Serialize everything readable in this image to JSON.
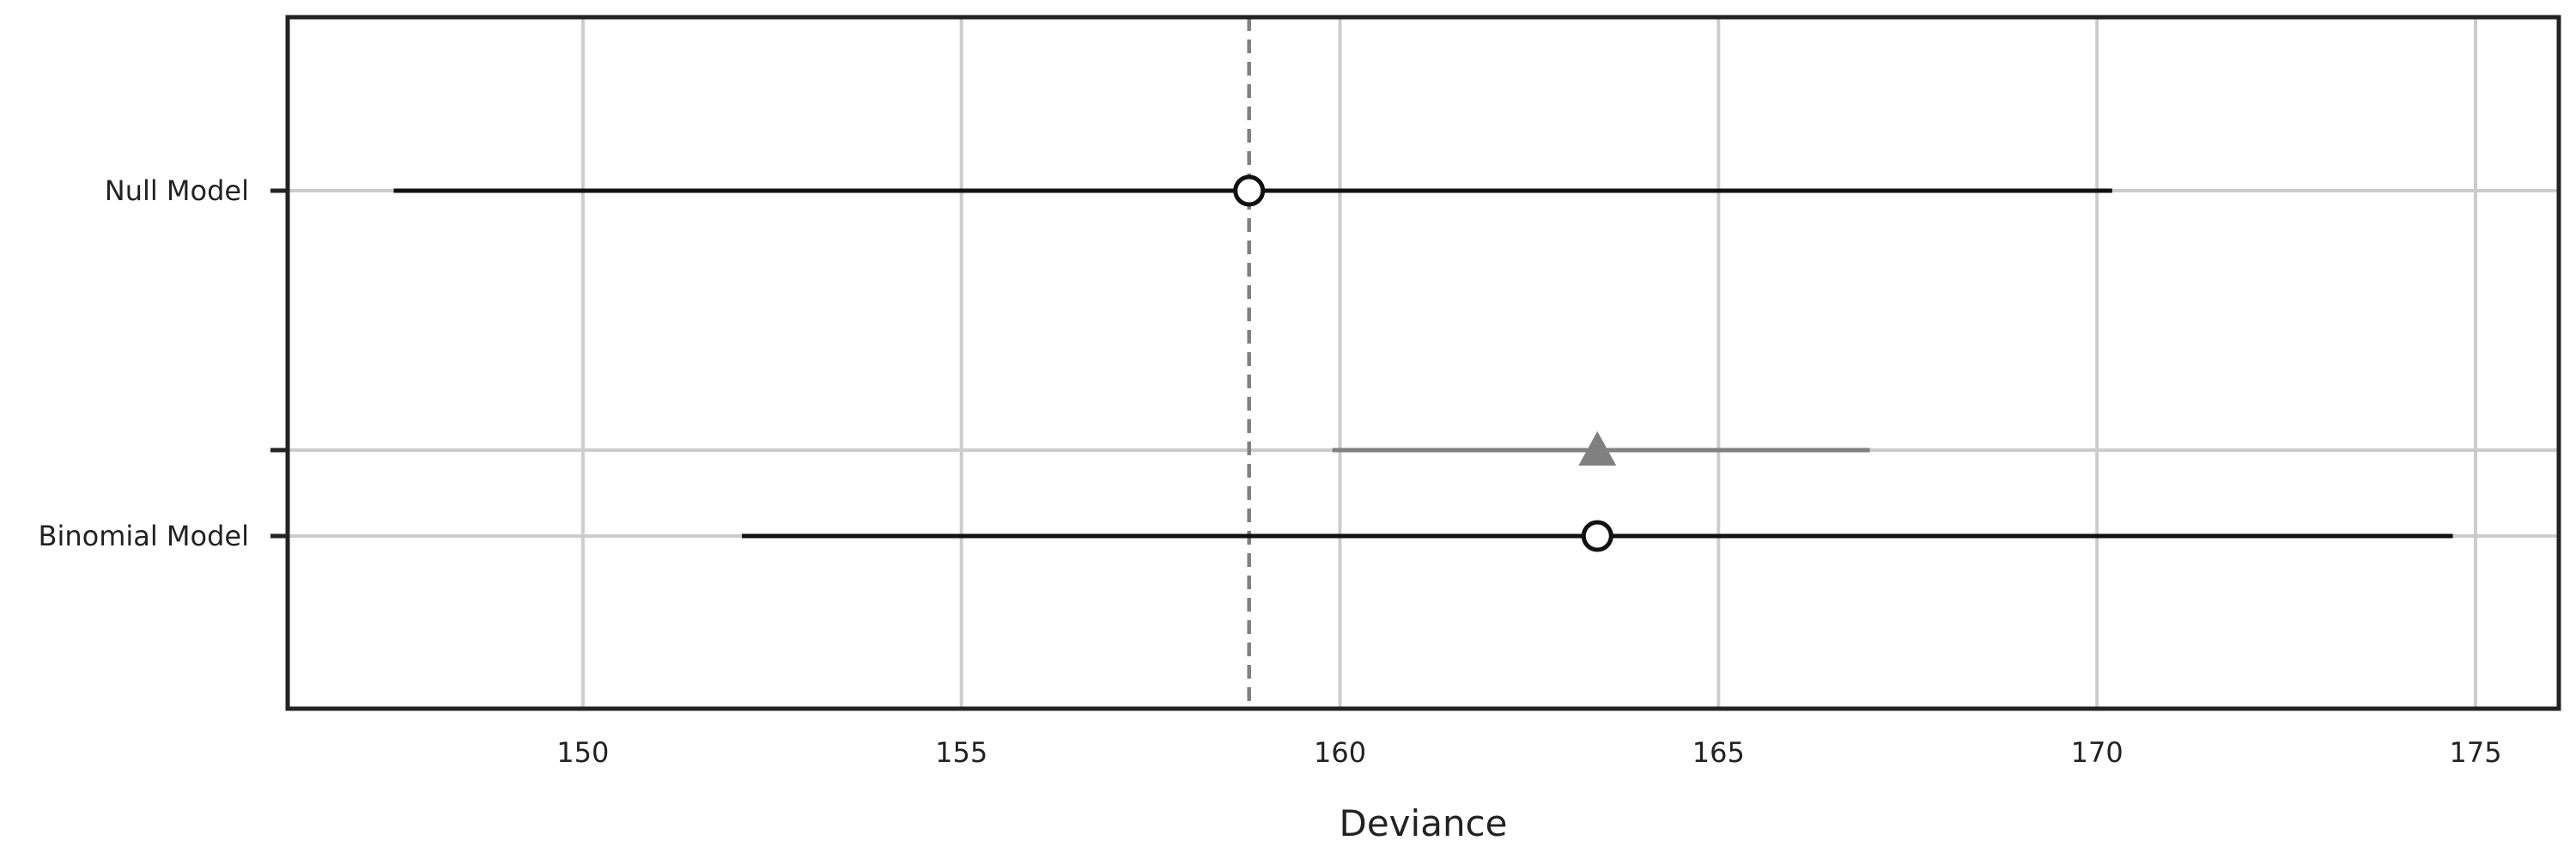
{
  "chart_data": {
    "type": "forest",
    "xlabel": "Deviance",
    "xlim": [
      146.1,
      176.1
    ],
    "xticks": [
      150,
      155,
      160,
      165,
      170,
      175
    ],
    "grid": true,
    "reference_line": {
      "x": 158.8,
      "style": "dashed",
      "color": "#808080"
    },
    "models": [
      {
        "label": "Null Model",
        "deviance": 158.8,
        "interval": [
          147.5,
          170.2
        ]
      },
      {
        "label": "Binomial Model",
        "deviance": 163.4,
        "interval": [
          152.1,
          174.7
        ],
        "secondary": {
          "estimate": 163.4,
          "interval": [
            159.9,
            167.0
          ]
        }
      }
    ],
    "colors": {
      "primary": "#111111",
      "secondary": "#808080",
      "grid": "#cccccc",
      "frame": "#222222"
    }
  }
}
